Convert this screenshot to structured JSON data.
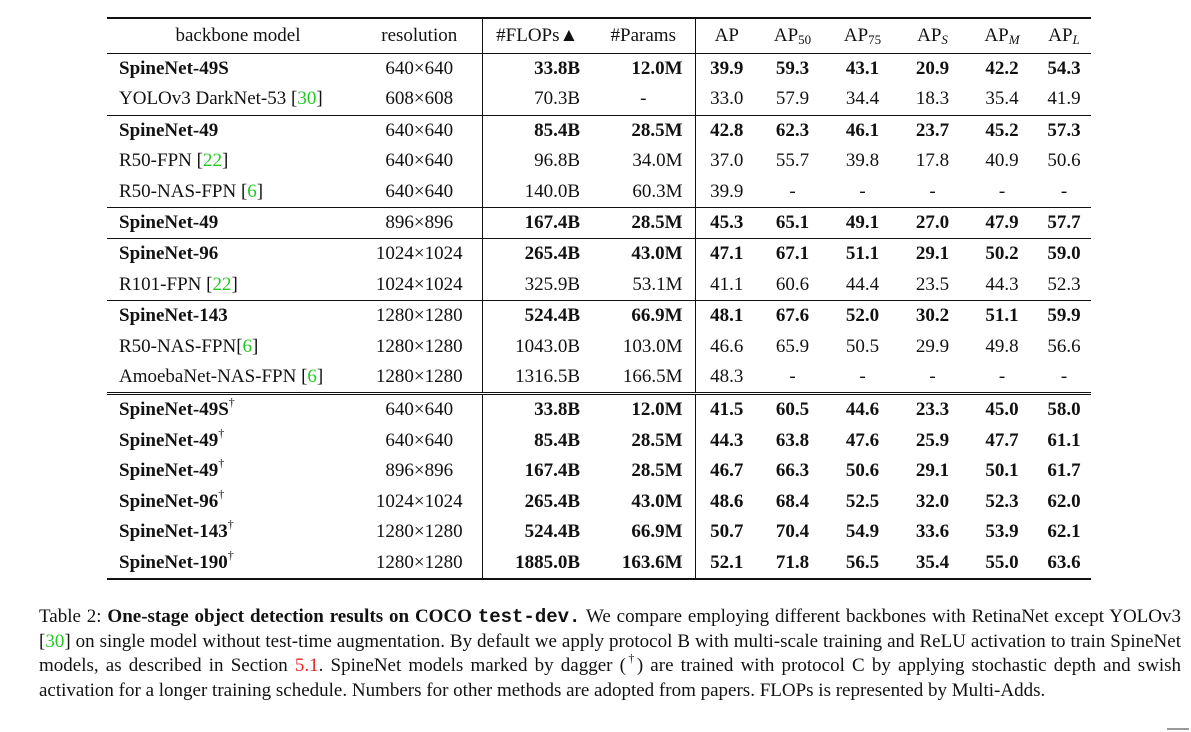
{
  "table": {
    "headers": [
      {
        "main": "backbone model"
      },
      {
        "main": "resolution"
      },
      {
        "main": "#FLOPs▲"
      },
      {
        "main": "#Params"
      },
      {
        "main": "AP"
      },
      {
        "main": "AP",
        "sub": "50"
      },
      {
        "main": "AP",
        "sub": "75"
      },
      {
        "main": "AP",
        "sub": "S"
      },
      {
        "main": "AP",
        "sub": "M"
      },
      {
        "main": "AP",
        "sub": "L"
      }
    ],
    "rows": [
      {
        "model": "SpineNet-49S",
        "bold": true,
        "resolution": "640×640",
        "flops": "33.8B",
        "params": "12.0M",
        "ap": [
          "39.9",
          "59.3",
          "43.1",
          "20.9",
          "42.2",
          "54.3"
        ],
        "group_start": false
      },
      {
        "model": "YOLOv3 DarkNet-53 [",
        "cite": "30",
        "model_end": "]",
        "bold": false,
        "resolution": "608×608",
        "flops": "70.3B",
        "params": "-",
        "ap": [
          "33.0",
          "57.9",
          "34.4",
          "18.3",
          "35.4",
          "41.9"
        ]
      },
      {
        "model": "SpineNet-49",
        "bold": true,
        "resolution": "640×640",
        "flops": "85.4B",
        "params": "28.5M",
        "ap": [
          "42.8",
          "62.3",
          "46.1",
          "23.7",
          "45.2",
          "57.3"
        ],
        "group_start": true
      },
      {
        "model": "R50-FPN [",
        "cite": "22",
        "model_end": "]",
        "bold": false,
        "resolution": "640×640",
        "flops": "96.8B",
        "params": "34.0M",
        "ap": [
          "37.0",
          "55.7",
          "39.8",
          "17.8",
          "40.9",
          "50.6"
        ]
      },
      {
        "model": "R50-NAS-FPN [",
        "cite": "6",
        "model_end": "]",
        "bold": false,
        "resolution": "640×640",
        "flops": "140.0B",
        "params": "60.3M",
        "ap": [
          "39.9",
          "-",
          "-",
          "-",
          "-",
          "-"
        ]
      },
      {
        "model": "SpineNet-49",
        "bold": true,
        "resolution": "896×896",
        "flops": "167.4B",
        "params": "28.5M",
        "ap": [
          "45.3",
          "65.1",
          "49.1",
          "27.0",
          "47.9",
          "57.7"
        ],
        "group_start": true
      },
      {
        "model": "SpineNet-96",
        "bold": true,
        "resolution": "1024×1024",
        "flops": "265.4B",
        "params": "43.0M",
        "ap": [
          "47.1",
          "67.1",
          "51.1",
          "29.1",
          "50.2",
          "59.0"
        ],
        "group_start": true
      },
      {
        "model": "R101-FPN [",
        "cite": "22",
        "model_end": "]",
        "bold": false,
        "resolution": "1024×1024",
        "flops": "325.9B",
        "params": "53.1M",
        "ap": [
          "41.1",
          "60.6",
          "44.4",
          "23.5",
          "44.3",
          "52.3"
        ]
      },
      {
        "model": "SpineNet-143",
        "bold": true,
        "resolution": "1280×1280",
        "flops": "524.4B",
        "params": "66.9M",
        "ap": [
          "48.1",
          "67.6",
          "52.0",
          "30.2",
          "51.1",
          "59.9"
        ],
        "group_start": true
      },
      {
        "model": "R50-NAS-FPN[",
        "cite": "6",
        "model_end": "]",
        "bold": false,
        "resolution": "1280×1280",
        "flops": "1043.0B",
        "params": "103.0M",
        "ap": [
          "46.6",
          "65.9",
          "50.5",
          "29.9",
          "49.8",
          "56.6"
        ]
      },
      {
        "model": "AmoebaNet-NAS-FPN [",
        "cite": "6",
        "model_end": "]",
        "bold": false,
        "resolution": "1280×1280",
        "flops": "1316.5B",
        "params": "166.5M",
        "ap": [
          "48.3",
          "-",
          "-",
          "-",
          "-",
          "-"
        ]
      },
      {
        "model": "SpineNet-49S",
        "dagger": "†",
        "bold": true,
        "resolution": "640×640",
        "flops": "33.8B",
        "params": "12.0M",
        "ap": [
          "41.5",
          "60.5",
          "44.6",
          "23.3",
          "45.0",
          "58.0"
        ],
        "double_start": true
      },
      {
        "model": "SpineNet-49",
        "dagger": "†",
        "bold": true,
        "resolution": "640×640",
        "flops": "85.4B",
        "params": "28.5M",
        "ap": [
          "44.3",
          "63.8",
          "47.6",
          "25.9",
          "47.7",
          "61.1"
        ]
      },
      {
        "model": "SpineNet-49",
        "dagger": "†",
        "bold": true,
        "resolution": "896×896",
        "flops": "167.4B",
        "params": "28.5M",
        "ap": [
          "46.7",
          "66.3",
          "50.6",
          "29.1",
          "50.1",
          "61.7"
        ]
      },
      {
        "model": "SpineNet-96",
        "dagger": "†",
        "bold": true,
        "resolution": "1024×1024",
        "flops": "265.4B",
        "params": "43.0M",
        "ap": [
          "48.6",
          "68.4",
          "52.5",
          "32.0",
          "52.3",
          "62.0"
        ]
      },
      {
        "model": "SpineNet-143",
        "dagger": "†",
        "bold": true,
        "resolution": "1280×1280",
        "flops": "524.4B",
        "params": "66.9M",
        "ap": [
          "50.7",
          "70.4",
          "54.9",
          "33.6",
          "53.9",
          "62.1"
        ]
      },
      {
        "model": "SpineNet-190",
        "dagger": "†",
        "bold": true,
        "resolution": "1280×1280",
        "flops": "1885.0B",
        "params": "163.6M",
        "ap": [
          "52.1",
          "71.8",
          "56.5",
          "35.4",
          "55.0",
          "63.6"
        ]
      }
    ]
  },
  "caption": {
    "label": "Table 2: ",
    "bold_title": "One-stage object detection results on COCO ",
    "mono": "test-dev.",
    "t1": " We compare employing different backbones with RetinaNet except YOLOv3 [",
    "cite1": "30",
    "t2": "] on single model without test-time augmentation.  By default we apply protocol B with multi-scale training and ReLU activation to train SpineNet models, as described in Section ",
    "ref1": "5.1",
    "t3": ". SpineNet models marked by dagger (",
    "dagger": "†",
    "t4": ") are trained with protocol C by applying stochastic depth and swish activation for a longer training schedule. Numbers for other methods are adopted from papers. FLOPs is represented by Multi-Adds."
  },
  "colors": {
    "citation": "#22c922",
    "section_ref": "#e22222"
  }
}
